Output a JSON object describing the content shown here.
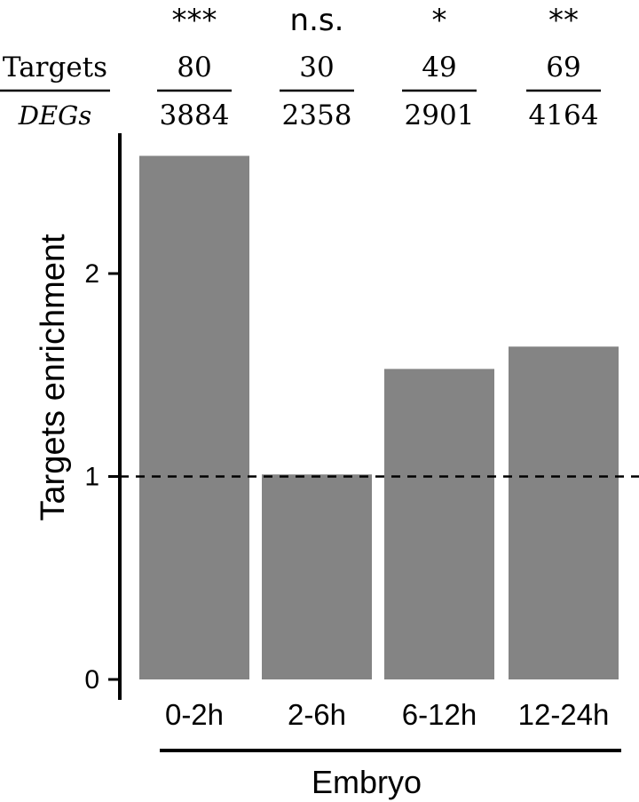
{
  "chart_data": {
    "type": "bar",
    "categories": [
      "0-2h",
      "2-6h",
      "6-12h",
      "12-24h"
    ],
    "values": [
      2.58,
      1.01,
      1.53,
      1.64
    ],
    "ylabel": "Targets enrichment",
    "xlabel": "",
    "group_label": "Embryo",
    "ylim": [
      0,
      2.7
    ],
    "yticks": [
      "0",
      "1",
      "2"
    ],
    "reference_line": 1,
    "bar_color": "#848484",
    "significance": [
      "***",
      "n.s.",
      "*",
      "**"
    ],
    "header_numerator_label": "Targets",
    "header_denominator_label": "DEGs",
    "targets": [
      "80",
      "30",
      "49",
      "69"
    ],
    "degs": [
      "3884",
      "2358",
      "2901",
      "4164"
    ]
  }
}
